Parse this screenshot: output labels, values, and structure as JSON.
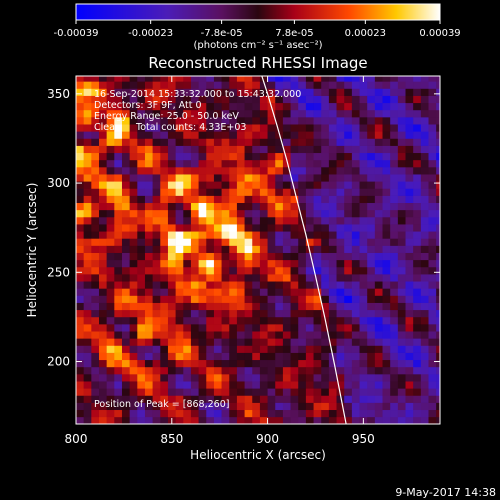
{
  "colorbar": {
    "ticks": [
      "-0.00039",
      "-0.00023",
      "-7.8e-05",
      "7.8e-05",
      "0.00023",
      "0.00039"
    ],
    "tick_values": [
      -0.00039,
      -0.00023,
      -7.8e-05,
      7.8e-05,
      0.00023,
      0.00039
    ],
    "units": "(photons cm⁻² s⁻¹ asec⁻²)"
  },
  "footer": {
    "timestamp": "9-May-2017 14:38"
  },
  "chart_data": {
    "type": "heatmap",
    "title": "Reconstructed RHESSI Image",
    "xlabel": "Heliocentric X (arcsec)",
    "ylabel": "Heliocentric Y (arcsec)",
    "xlim": [
      800,
      990
    ],
    "ylim": [
      165,
      360
    ],
    "x_ticks": [
      800,
      850,
      900,
      950
    ],
    "y_ticks": [
      200,
      250,
      300,
      350
    ],
    "zlim": [
      -0.00039,
      0.00039
    ],
    "colormap": "blue-purple-red-yellow-white",
    "annotations": [
      "16-Sep-2014 15:33:32.000 to 15:43:32.000",
      "Detectors: 3F 9F, Att 0",
      "Energy Range: 25.0 - 50.0 keV",
      "Clean     Total counts: 4.33E+03"
    ],
    "peak_label": "Position of Peak = [868,260]",
    "peak": {
      "x": 868,
      "y": 260
    },
    "limb_curve": {
      "x": [
        897,
        900,
        905,
        910,
        915,
        920,
        925,
        930,
        935,
        941
      ],
      "y": [
        360,
        350,
        332,
        313,
        292,
        271,
        248,
        224,
        198,
        165
      ]
    },
    "bright_sources": [
      {
        "x": 804,
        "y": 335,
        "peak": 0.00039
      },
      {
        "x": 865,
        "y": 285,
        "peak": 0.00036
      },
      {
        "x": 870,
        "y": 255,
        "peak": 0.00037
      },
      {
        "x": 805,
        "y": 285,
        "peak": 0.00031
      },
      {
        "x": 835,
        "y": 215,
        "peak": 0.00024
      },
      {
        "x": 905,
        "y": 310,
        "peak": 0.00018
      }
    ]
  }
}
